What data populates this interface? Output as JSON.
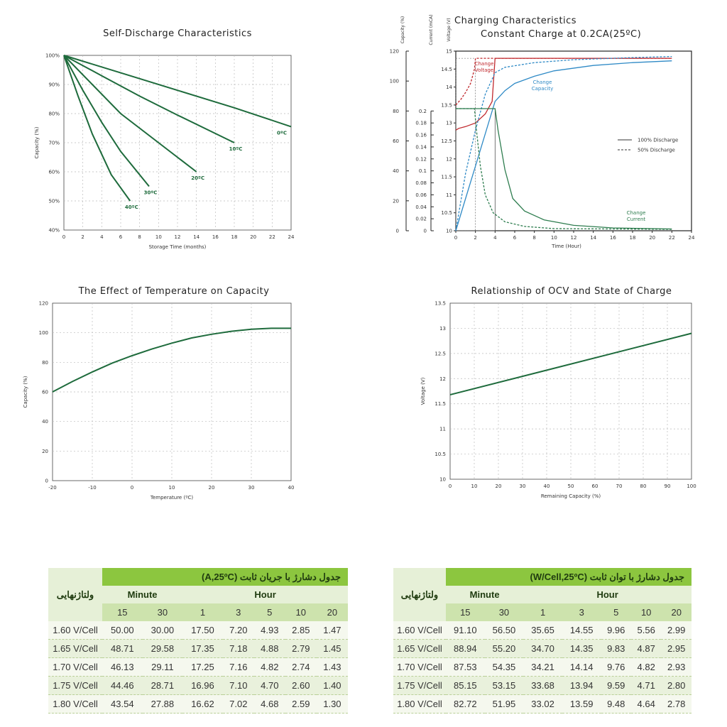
{
  "chart_data": [
    {
      "type": "line",
      "title": "Self-Discharge Characteristics",
      "xlabel": "Storage Time (months)",
      "ylabel": "Capacity (%)",
      "xlim": [
        0,
        24
      ],
      "ylim": [
        40,
        100
      ],
      "xticks": [
        "0",
        "2",
        "4",
        "6",
        "8",
        "10",
        "12",
        "14",
        "16",
        "18",
        "20",
        "22",
        "24"
      ],
      "yticks": [
        "40%",
        "50%",
        "60%",
        "70%",
        "80%",
        "90%",
        "100%"
      ],
      "grid": true,
      "series": [
        {
          "name": "0ºC",
          "x": [
            0,
            6,
            12,
            18,
            24
          ],
          "y": [
            100,
            94,
            88,
            82,
            75.5
          ]
        },
        {
          "name": "10ºC",
          "x": [
            0,
            4,
            8,
            12,
            18
          ],
          "y": [
            100,
            93,
            86,
            79.5,
            70
          ]
        },
        {
          "name": "20ºC",
          "x": [
            0,
            3,
            6,
            10,
            14
          ],
          "y": [
            100,
            90,
            80,
            70,
            60
          ]
        },
        {
          "name": "30ºC",
          "x": [
            0,
            2,
            4,
            6,
            9
          ],
          "y": [
            100,
            88,
            77,
            67,
            55
          ]
        },
        {
          "name": "40ºC",
          "x": [
            0,
            1.5,
            3,
            5,
            7
          ],
          "y": [
            100,
            86,
            73,
            59,
            50
          ]
        }
      ]
    },
    {
      "type": "line",
      "title": "Charging Characteristics\n        Constant Charge at 0.2CA(25ºC)",
      "xlabel": "Time (Hour)",
      "ylabel_capacity": "Capacity (%)",
      "ylabel_current": "Current (mCA)",
      "ylabel_voltage": "Voltage (V)",
      "xlim": [
        0,
        24
      ],
      "xticks": [
        "0",
        "2",
        "4",
        "6",
        "8",
        "10",
        "12",
        "14",
        "16",
        "18",
        "20",
        "22",
        "24"
      ],
      "capacity_ticks": [
        "0",
        "20",
        "40",
        "60",
        "80",
        "100",
        "120"
      ],
      "current_ticks": [
        "0",
        "0.02",
        "0.04",
        "0.06",
        "0.08",
        "0.1",
        "0.12",
        "0.14",
        "0.16",
        "0.18",
        "0.2"
      ],
      "voltage_ticks": [
        "10",
        "10.5",
        "11",
        "11.5",
        "12",
        "12.5",
        "13",
        "13.5",
        "14",
        "14.5",
        "15"
      ],
      "voltage_lim": [
        10,
        15
      ],
      "legend": [
        {
          "label": "100% Discharge",
          "style": "solid"
        },
        {
          "label": "50% Discharge",
          "style": "dashed"
        }
      ],
      "annotations": {
        "voltage": "Change\nVoltage",
        "capacity": "Change\nCapacity",
        "current": "Change\nCurrent"
      },
      "colors": {
        "voltage": "#c0282d",
        "capacity": "#2f8ac6",
        "current": "#2e7d4f",
        "box": "#555555"
      },
      "series": [
        {
          "name": "voltage_100",
          "style": "solid",
          "x": [
            0,
            0.3,
            1,
            2,
            3,
            3.7,
            4,
            22
          ],
          "v": [
            12.8,
            12.85,
            12.9,
            13.0,
            13.25,
            13.6,
            14.8,
            14.8
          ]
        },
        {
          "name": "voltage_50",
          "style": "dashed",
          "x": [
            0,
            0.5,
            1,
            1.5,
            1.9,
            2,
            22
          ],
          "v": [
            13.5,
            13.65,
            13.85,
            14.1,
            14.5,
            14.8,
            14.8
          ]
        },
        {
          "name": "capacity_100",
          "style": "solid",
          "x": [
            0,
            1,
            2,
            3,
            4,
            5,
            6,
            8,
            10,
            14,
            18,
            22
          ],
          "v": [
            10,
            10.9,
            11.8,
            12.7,
            13.6,
            13.9,
            14.1,
            14.3,
            14.45,
            14.6,
            14.68,
            14.73
          ]
        },
        {
          "name": "capacity_50",
          "style": "dashed",
          "x": [
            0,
            1,
            2,
            3,
            4,
            5,
            8,
            12,
            18,
            22
          ],
          "v": [
            10,
            11.6,
            12.8,
            13.8,
            14.4,
            14.55,
            14.68,
            14.76,
            14.82,
            14.85
          ]
        },
        {
          "name": "current_100",
          "style": "solid",
          "x": [
            0,
            4,
            4.3,
            5,
            5.8,
            7,
            9,
            12,
            16,
            22
          ],
          "v": [
            13.4,
            13.4,
            12.8,
            11.7,
            10.9,
            10.55,
            10.3,
            10.15,
            10.08,
            10.05
          ]
        },
        {
          "name": "current_50",
          "style": "dashed",
          "x": [
            0,
            1.9,
            2.1,
            2.5,
            3,
            3.8,
            5,
            7,
            10,
            22
          ],
          "v": [
            13.4,
            13.4,
            12.8,
            11.8,
            11.0,
            10.5,
            10.25,
            10.12,
            10.06,
            10.04
          ]
        }
      ]
    },
    {
      "type": "line",
      "title": "The Effect of Temperature on Capacity",
      "xlabel": "Temperature (ºC)",
      "ylabel": "Capacity (%)",
      "xlim": [
        -20,
        40
      ],
      "ylim": [
        0,
        120
      ],
      "xticks": [
        "-20",
        "-10",
        "0",
        "10",
        "20",
        "30",
        "40"
      ],
      "yticks": [
        "0",
        "20",
        "40",
        "60",
        "80",
        "100",
        "120"
      ],
      "grid": true,
      "series": [
        {
          "name": "capacity",
          "x": [
            -20,
            -15,
            -10,
            -5,
            0,
            5,
            10,
            15,
            20,
            25,
            30,
            35,
            40
          ],
          "y": [
            60,
            67,
            73.5,
            79.5,
            84.5,
            89,
            93,
            96.5,
            99,
            101,
            102.4,
            103,
            103
          ]
        }
      ]
    },
    {
      "type": "line",
      "title": "Relationship of OCV and State of Charge",
      "xlabel": "Remaining Capacity (%)",
      "ylabel": "Voltage (V)",
      "xlim": [
        0,
        100
      ],
      "ylim": [
        10,
        13.5
      ],
      "xticks": [
        "0",
        "10",
        "20",
        "30",
        "40",
        "50",
        "60",
        "70",
        "80",
        "90",
        "100"
      ],
      "yticks": [
        "10",
        "10.5",
        "11",
        "11.5",
        "12",
        "12.5",
        "13",
        "13.5"
      ],
      "grid": true,
      "series": [
        {
          "name": "ocv",
          "x": [
            0,
            100
          ],
          "y": [
            11.68,
            12.9
          ]
        }
      ]
    }
  ],
  "tables": [
    {
      "title": "جدول دشارژ با جریان ثابت  (A,25ºC)",
      "voltage_header": "ولتاژنهایی",
      "minute_label": "Minute",
      "hour_label": "Hour",
      "columns": [
        "15",
        "30",
        "1",
        "3",
        "5",
        "10",
        "20"
      ],
      "rows": [
        {
          "label": "1.60 V/Cell",
          "values": [
            "50.00",
            "30.00",
            "17.50",
            "7.20",
            "4.93",
            "2.85",
            "1.47"
          ]
        },
        {
          "label": "1.65 V/Cell",
          "values": [
            "48.71",
            "29.58",
            "17.35",
            "7.18",
            "4.88",
            "2.79",
            "1.45"
          ]
        },
        {
          "label": "1.70 V/Cell",
          "values": [
            "46.13",
            "29.11",
            "17.25",
            "7.16",
            "4.82",
            "2.74",
            "1.43"
          ]
        },
        {
          "label": "1.75 V/Cell",
          "values": [
            "44.46",
            "28.71",
            "16.96",
            "7.10",
            "4.70",
            "2.60",
            "1.40"
          ]
        },
        {
          "label": "1.80 V/Cell",
          "values": [
            "43.54",
            "27.88",
            "16.62",
            "7.02",
            "4.68",
            "2.59",
            "1.30"
          ]
        }
      ]
    },
    {
      "title": "جدول دشارژ با توان ثابت   (W/Cell,25ºC)",
      "voltage_header": "ولتاژنهایی",
      "minute_label": "Minute",
      "hour_label": "Hour",
      "columns": [
        "15",
        "30",
        "1",
        "3",
        "5",
        "10",
        "20"
      ],
      "rows": [
        {
          "label": "1.60 V/Cell",
          "values": [
            "91.10",
            "56.50",
            "35.65",
            "14.55",
            "9.96",
            "5.56",
            "2.99"
          ]
        },
        {
          "label": "1.65 V/Cell",
          "values": [
            "88.94",
            "55.20",
            "34.70",
            "14.35",
            "9.83",
            "4.87",
            "2.95"
          ]
        },
        {
          "label": "1.70 V/Cell",
          "values": [
            "87.53",
            "54.35",
            "34.21",
            "14.14",
            "9.76",
            "4.82",
            "2.93"
          ]
        },
        {
          "label": "1.75 V/Cell",
          "values": [
            "85.15",
            "53.15",
            "33.68",
            "13.94",
            "9.59",
            "4.71",
            "2.80"
          ]
        },
        {
          "label": "1.80 V/Cell",
          "values": [
            "82.72",
            "51.95",
            "33.02",
            "13.59",
            "9.48",
            "4.64",
            "2.78"
          ]
        }
      ]
    }
  ],
  "colors": {
    "line_green": "#1e6b3c",
    "table_green": "#8cc63f"
  }
}
